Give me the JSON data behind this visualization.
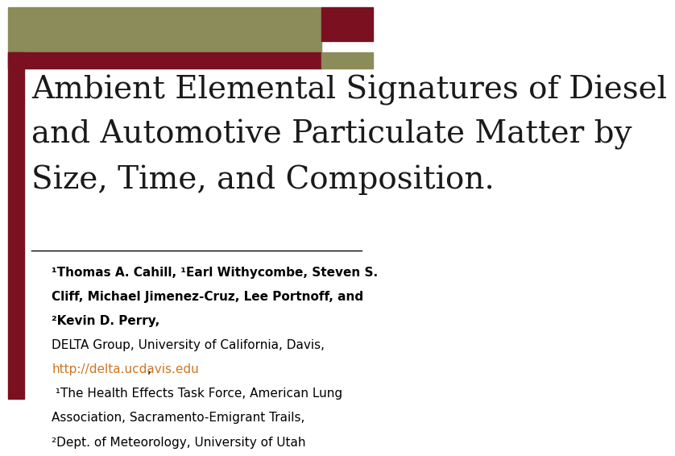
{
  "title_line1": "Ambient Elemental Signatures of Diesel",
  "title_line2": "and Automotive Particulate Matter by",
  "title_line3": "Size, Time, and Composition.",
  "title_color": "#1a1a1a",
  "title_fontsize": 28,
  "header_left_color": "#8b8c5a",
  "header_right_color": "#7a1020",
  "header_accent_color": "#8b8c5a",
  "left_border_color": "#7a1020",
  "stripe_color": "#7a1020",
  "bg_color": "#ffffff",
  "author_bold_line1": "¹Thomas A. Cahill, ¹Earl Withycombe, Steven S.",
  "author_bold_line2": "Cliff, Michael Jimenez-Cruz, Lee Portnoff, and",
  "author_bold_line3": "²Kevin D. Perry,",
  "affil_line1": "DELTA Group, University of California, Davis,",
  "url": "http://delta.ucdavis.edu",
  "url_comma": ",",
  "affil_line3": " ¹The Health Effects Task Force, American Lung",
  "affil_line4": "Association, Sacramento-Emigrant Trails,",
  "affil_line5": "²Dept. of Meteorology, University of Utah",
  "url_color": "#cc7722",
  "author_fontsize": 11,
  "affil_fontsize": 11
}
